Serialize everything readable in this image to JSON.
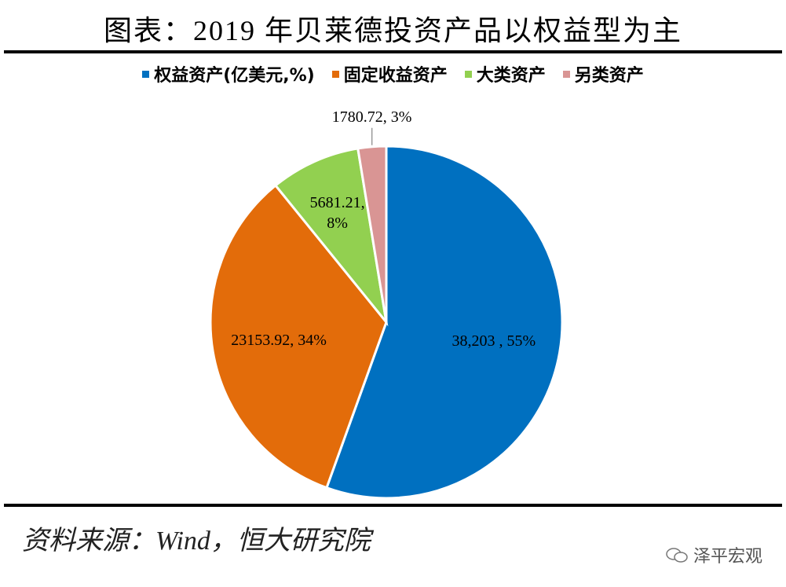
{
  "chart_data": {
    "type": "pie",
    "title": "图表：2019 年贝莱德投资产品以权益型为主",
    "categories": [
      "权益资产(亿美元,%)",
      "固定收益资产",
      "大类资产",
      "另类资产"
    ],
    "values": [
      38203,
      23153.92,
      5681.21,
      1780.72
    ],
    "value_labels": [
      "38,203 , 55%",
      "23153.92, 34%",
      "5681.21, 8%",
      "1780.72, 3%"
    ],
    "colors": [
      "#0070c0",
      "#e36c0a",
      "#92d050",
      "#d99594"
    ],
    "legend": "top"
  },
  "source": "资料来源：Wind，恒大研究院",
  "watermark": "泽平宏观"
}
